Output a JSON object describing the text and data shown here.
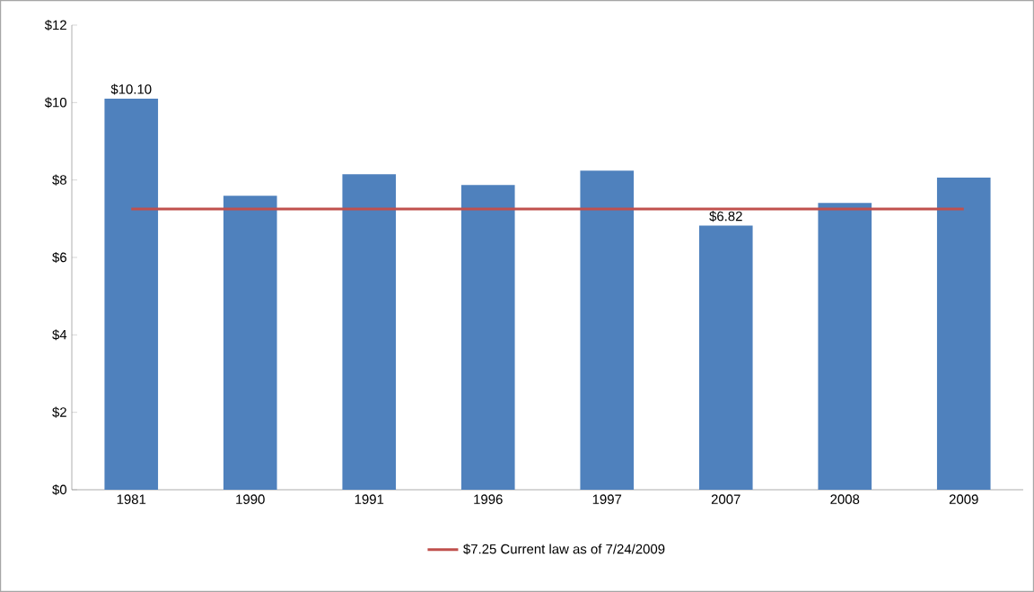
{
  "chart_data": {
    "type": "bar",
    "categories": [
      "1981",
      "1990",
      "1991",
      "1996",
      "1997",
      "2007",
      "2008",
      "2009"
    ],
    "values": [
      10.1,
      7.59,
      8.15,
      7.87,
      8.24,
      6.82,
      7.41,
      8.06
    ],
    "value_labels": [
      "$10.10",
      null,
      null,
      null,
      null,
      "$6.82",
      null,
      null
    ],
    "color": "#4f81bd",
    "ylim": [
      0,
      12
    ],
    "yticks": [
      {
        "value": 0,
        "label": "$0"
      },
      {
        "value": 2,
        "label": "$2"
      },
      {
        "value": 4,
        "label": "$4"
      },
      {
        "value": 6,
        "label": "$6"
      },
      {
        "value": 8,
        "label": "$8"
      },
      {
        "value": 10,
        "label": "$10"
      },
      {
        "value": 12,
        "label": "$12"
      }
    ],
    "ref_lines": [
      {
        "axis": "y",
        "value": 7.25,
        "label": "$7.25 Current law as of 7/24/2009",
        "color": "#c0504d"
      }
    ],
    "legend": "bottom"
  }
}
